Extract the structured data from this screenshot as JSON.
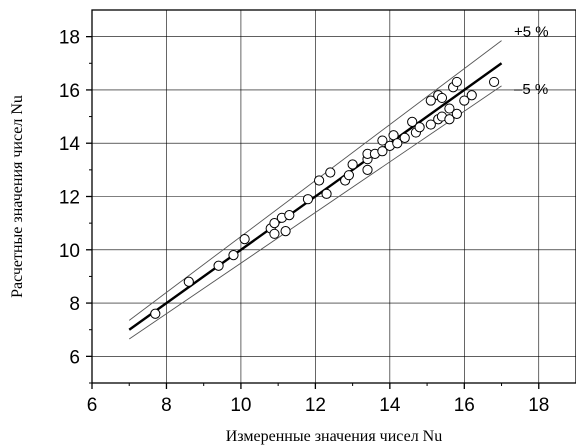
{
  "chart_data": {
    "type": "scatter",
    "xlabel": "Измеренные значения чисел Nu",
    "ylabel": "Расчетные значения чисел Nu",
    "xlim": [
      6,
      19
    ],
    "ylim": [
      5,
      19
    ],
    "xticks": [
      6,
      8,
      10,
      12,
      14,
      16,
      18
    ],
    "yticks": [
      6,
      8,
      10,
      12,
      14,
      16,
      18
    ],
    "grid": true,
    "series": [
      {
        "marker": "open-circle",
        "points": [
          [
            7.7,
            7.6
          ],
          [
            8.6,
            8.8
          ],
          [
            9.4,
            9.4
          ],
          [
            9.8,
            9.8
          ],
          [
            10.1,
            10.4
          ],
          [
            10.8,
            10.8
          ],
          [
            10.9,
            10.6
          ],
          [
            10.9,
            11.0
          ],
          [
            11.1,
            11.2
          ],
          [
            11.2,
            10.7
          ],
          [
            11.3,
            11.3
          ],
          [
            11.8,
            11.9
          ],
          [
            12.1,
            12.6
          ],
          [
            12.3,
            12.1
          ],
          [
            12.4,
            12.9
          ],
          [
            12.8,
            12.6
          ],
          [
            12.9,
            12.8
          ],
          [
            13.0,
            13.2
          ],
          [
            13.4,
            13.0
          ],
          [
            13.4,
            13.4
          ],
          [
            13.4,
            13.6
          ],
          [
            13.6,
            13.6
          ],
          [
            13.8,
            13.7
          ],
          [
            13.8,
            14.1
          ],
          [
            14.0,
            13.9
          ],
          [
            14.1,
            14.3
          ],
          [
            14.2,
            14.0
          ],
          [
            14.4,
            14.2
          ],
          [
            14.6,
            14.8
          ],
          [
            14.7,
            14.4
          ],
          [
            14.8,
            14.6
          ],
          [
            15.1,
            14.7
          ],
          [
            15.1,
            15.6
          ],
          [
            15.3,
            14.9
          ],
          [
            15.3,
            15.8
          ],
          [
            15.4,
            15.7
          ],
          [
            15.4,
            15.0
          ],
          [
            15.6,
            15.3
          ],
          [
            15.6,
            14.9
          ],
          [
            15.7,
            16.1
          ],
          [
            15.8,
            15.1
          ],
          [
            15.8,
            16.3
          ],
          [
            16.0,
            15.6
          ],
          [
            16.2,
            15.8
          ],
          [
            16.8,
            16.3
          ]
        ]
      }
    ],
    "lines": [
      {
        "role": "fit",
        "x": [
          7,
          17
        ],
        "y": [
          7,
          17
        ],
        "color": "#000000"
      },
      {
        "role": "upper",
        "label": "+5 %",
        "x": [
          7,
          17
        ],
        "y": [
          7.35,
          17.85
        ],
        "color": "#555555"
      },
      {
        "role": "lower",
        "label": "–5 %",
        "x": [
          7,
          17
        ],
        "y": [
          6.65,
          16.15
        ],
        "color": "#555555"
      }
    ]
  }
}
